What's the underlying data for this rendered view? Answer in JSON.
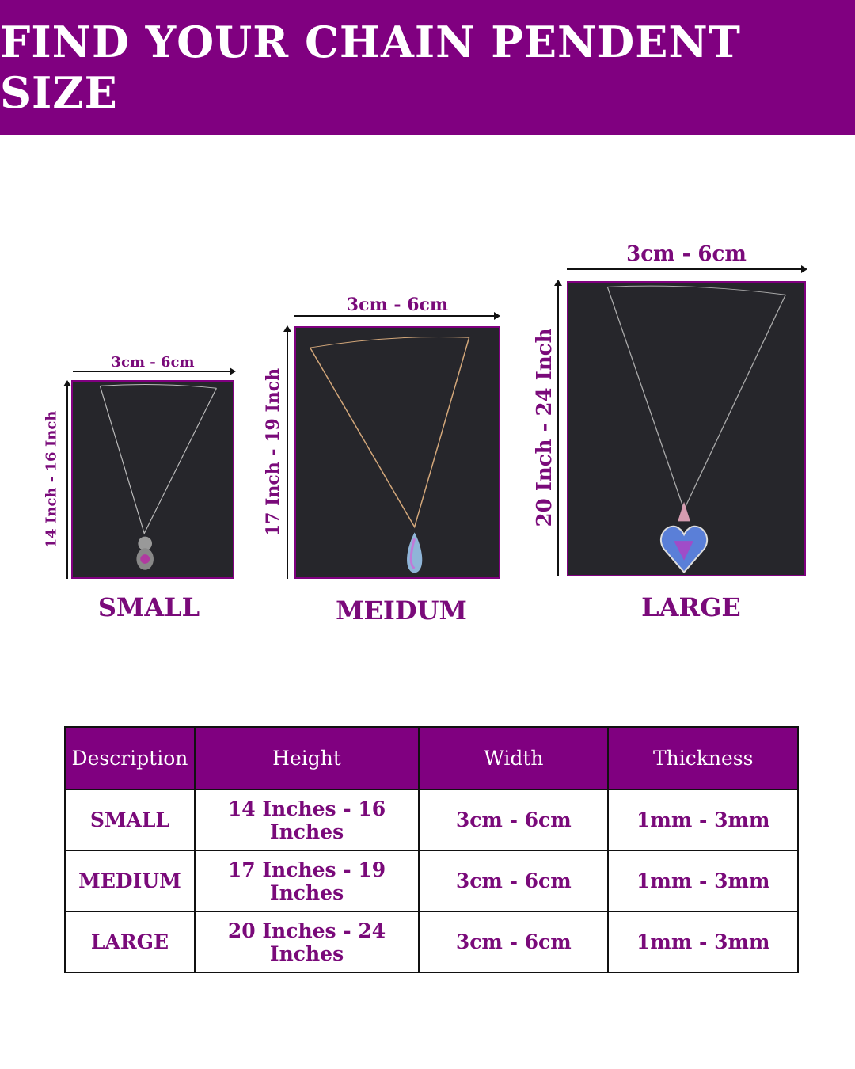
{
  "title": "FIND YOUR CHAIN PENDENT SIZE",
  "colors": {
    "brand_purple": "#800080",
    "text_purple": "#7a0a7a",
    "photo_bg": "#26262b"
  },
  "sizes": [
    {
      "label": "SMALL",
      "width": "3cm - 6cm",
      "length": "14 Inch - 16 Inch",
      "pendant": "teddy-bear"
    },
    {
      "label": "MEIDUM",
      "width": "3cm - 6cm",
      "length": "17 Inch - 19 Inch",
      "pendant": "teardrop-crystal"
    },
    {
      "label": "LARGE",
      "width": "3cm - 6cm",
      "length": "20 Inch - 24 Inch",
      "pendant": "heart-crystal"
    }
  ],
  "table": {
    "headers": [
      "Description",
      "Height",
      "Width",
      "Thickness"
    ],
    "rows": [
      [
        "SMALL",
        "14 Inches - 16 Inches",
        "3cm - 6cm",
        "1mm - 3mm"
      ],
      [
        "MEDIUM",
        "17 Inches - 19 Inches",
        "3cm - 6cm",
        "1mm - 3mm"
      ],
      [
        "LARGE",
        "20 Inches - 24 Inches",
        "3cm - 6cm",
        "1mm - 3mm"
      ]
    ]
  }
}
